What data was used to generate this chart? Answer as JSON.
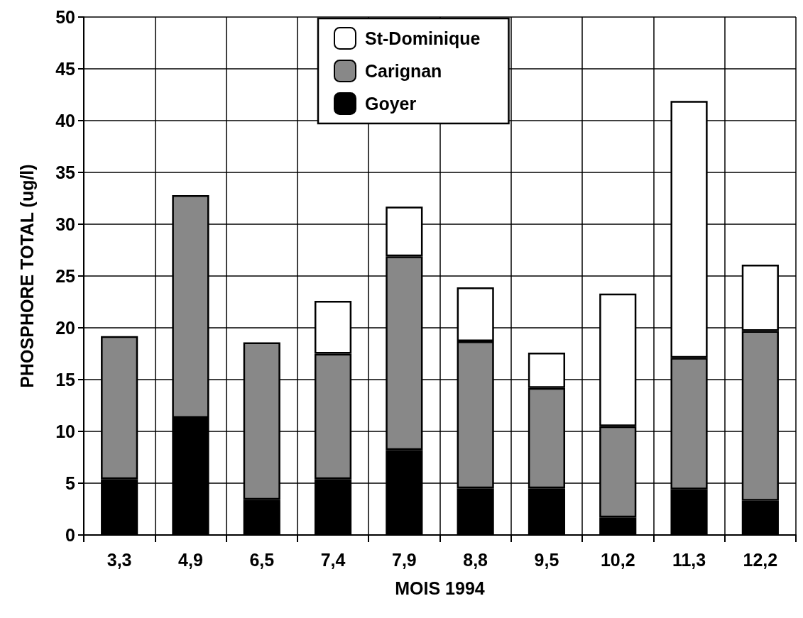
{
  "chart_data": {
    "type": "bar",
    "stacked": true,
    "xlabel": "MOIS 1994",
    "ylabel": "PHOSPHORE TOTAL (ug/l)",
    "categories": [
      "3,3",
      "4,9",
      "6,5",
      "7,4",
      "7,9",
      "8,8",
      "9,5",
      "10,2",
      "11,3",
      "12,2"
    ],
    "series": [
      {
        "name": "Goyer",
        "color": "#000000",
        "values": [
          5.4,
          11.3,
          3.4,
          5.4,
          8.2,
          4.5,
          4.5,
          1.7,
          4.4,
          3.3
        ]
      },
      {
        "name": "Carignan",
        "color": "#888888",
        "values": [
          13.8,
          21.5,
          15.2,
          12.1,
          18.7,
          14.2,
          9.7,
          8.8,
          12.7,
          16.4
        ]
      },
      {
        "name": "St-Dominique",
        "color": "#ffffff",
        "values": [
          null,
          null,
          null,
          5.1,
          4.8,
          5.2,
          3.4,
          12.8,
          24.8,
          6.4
        ]
      }
    ],
    "ylim": [
      0,
      50
    ],
    "yticks": [
      0,
      5,
      10,
      15,
      20,
      25,
      30,
      35,
      40,
      45,
      50
    ],
    "grid": true,
    "legend": "top"
  }
}
